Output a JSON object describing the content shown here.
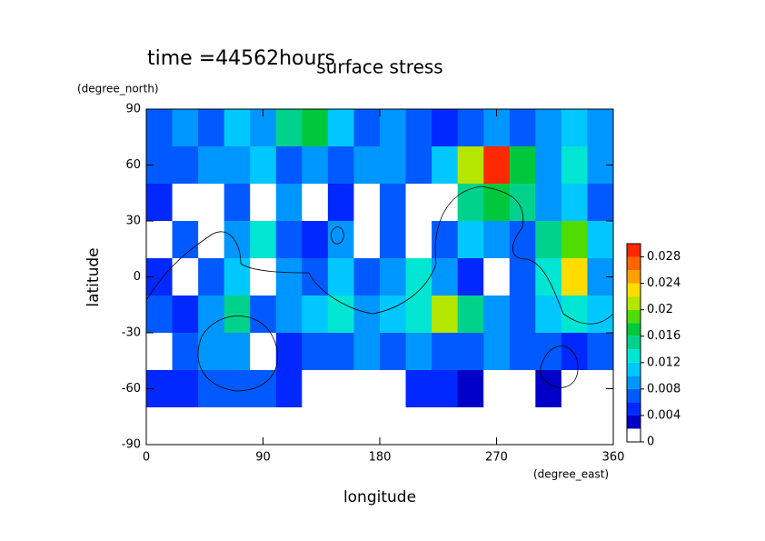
{
  "chart_data": {
    "type": "contour",
    "title": "surface stress",
    "subtitle": "time =44562hours",
    "x_label": "longitude",
    "x_unit": "(degree_east)",
    "y_label": "latitude",
    "y_unit": "(degree_north)",
    "x": [
      10,
      30,
      50,
      70,
      90,
      110,
      130,
      150,
      170,
      190,
      210,
      230,
      250,
      270,
      290,
      310,
      330,
      350
    ],
    "y": [
      80,
      60,
      40,
      20,
      0,
      -20,
      -40,
      -60,
      -80
    ],
    "z": [
      [
        0.006,
        0.008,
        0.006,
        0.01,
        0.008,
        0.014,
        0.016,
        0.01,
        0.006,
        0.008,
        0.006,
        0.004,
        0.006,
        0.008,
        0.006,
        0.008,
        0.01,
        0.008
      ],
      [
        0.006,
        0.006,
        0.008,
        0.008,
        0.01,
        0.006,
        0.008,
        0.006,
        0.008,
        0.008,
        0.006,
        0.01,
        0.02,
        0.028,
        0.016,
        0.008,
        0.012,
        0.008
      ],
      [
        0.004,
        0,
        0,
        0.006,
        0,
        0.008,
        0,
        0.004,
        0,
        0.006,
        0,
        0,
        0.014,
        0.016,
        0.014,
        0.008,
        0.01,
        0.006
      ],
      [
        0,
        0.006,
        0,
        0.008,
        0.012,
        0.006,
        0.004,
        0.008,
        0,
        0.006,
        0,
        0.006,
        0.01,
        0.008,
        0.006,
        0.014,
        0.018,
        0.01
      ],
      [
        0.004,
        0,
        0.006,
        0.01,
        0,
        0.008,
        0.006,
        0.01,
        0.006,
        0.008,
        0.012,
        0.008,
        0.004,
        0,
        0.006,
        0.012,
        0.022,
        0.008
      ],
      [
        0.006,
        0.004,
        0.008,
        0.014,
        0.006,
        0.008,
        0.01,
        0.012,
        0.008,
        0.01,
        0.012,
        0.02,
        0.014,
        0.008,
        0.006,
        0.01,
        0.012,
        0.01
      ],
      [
        0,
        0.006,
        0.008,
        0.008,
        0,
        0.004,
        0.006,
        0.006,
        0.008,
        0.006,
        0.008,
        0.006,
        0.006,
        0.008,
        0.006,
        0.006,
        0.004,
        0.006
      ],
      [
        0.004,
        0.004,
        0.006,
        0.006,
        0.006,
        0.004,
        0,
        0,
        0,
        0,
        0.004,
        0.004,
        0.002,
        0,
        0,
        0.002,
        0,
        0
      ],
      [
        0,
        0,
        0,
        0,
        0,
        0,
        0,
        0,
        0,
        0,
        0,
        0,
        0,
        0,
        0,
        0,
        0,
        0
      ]
    ],
    "levels": [
      0,
      0.002,
      0.004,
      0.006,
      0.008,
      0.01,
      0.012,
      0.014,
      0.016,
      0.018,
      0.02,
      0.022,
      0.024,
      0.026,
      0.028,
      0.03
    ],
    "colors": [
      "#ffffff",
      "#0000c8",
      "#0028ff",
      "#005aff",
      "#0096ff",
      "#00c8ff",
      "#00e6d2",
      "#00d28c",
      "#00c83c",
      "#50dc00",
      "#b4e600",
      "#ffdc00",
      "#ffa000",
      "#ff6400",
      "#ff2800"
    ],
    "xlim": [
      0,
      360
    ],
    "xticks": [
      0,
      90,
      180,
      270,
      360
    ],
    "ylim": [
      -90,
      90
    ],
    "yticks": [
      -90,
      -60,
      -30,
      0,
      30,
      60,
      90
    ],
    "cbar_ticks": [
      0,
      0.004,
      0.008,
      0.012,
      0.016,
      0.02,
      0.024,
      0.028
    ]
  }
}
